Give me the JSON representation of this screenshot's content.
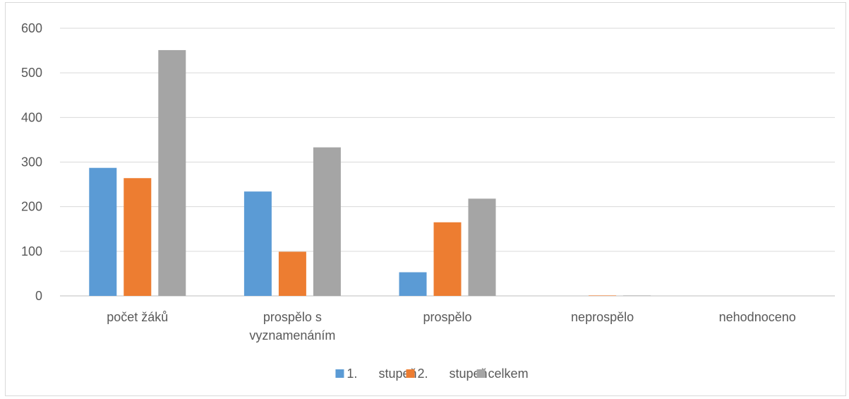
{
  "chart_data": {
    "type": "bar",
    "categories": [
      [
        "počet žáků"
      ],
      [
        "prospělo s",
        "vyznamenáním"
      ],
      [
        "prospělo"
      ],
      [
        "neprospělo"
      ],
      [
        "nehodnoceno"
      ]
    ],
    "series": [
      {
        "name": "1.      stupeň",
        "color": "#5b9bd5",
        "values": [
          287,
          234,
          53,
          0,
          0
        ]
      },
      {
        "name": "2.      stupeň",
        "color": "#ed7d31",
        "values": [
          264,
          99,
          165,
          1,
          0
        ]
      },
      {
        "name": "celkem",
        "color": "#a5a5a5",
        "values": [
          551,
          333,
          218,
          1,
          0
        ]
      }
    ],
    "ylim": [
      0,
      600
    ],
    "yticks": [
      0,
      100,
      200,
      300,
      400,
      500,
      600
    ],
    "grid": true,
    "legend": "bottom",
    "title": "",
    "xlabel": "",
    "ylabel": ""
  }
}
